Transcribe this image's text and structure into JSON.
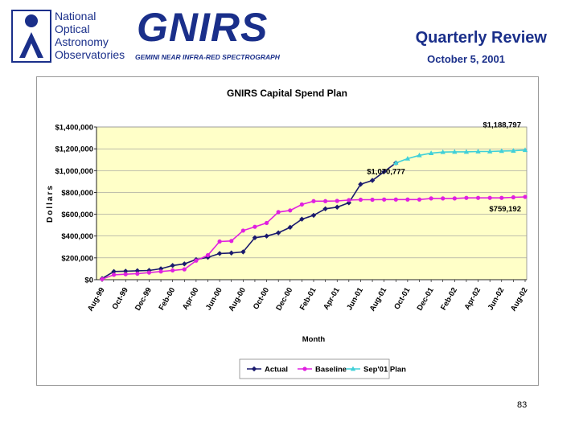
{
  "header": {
    "org_lines": [
      "National",
      "Optical",
      "Astronomy",
      "Observatories"
    ],
    "project": "GNIRS",
    "project_subtitle": "GEMINI NEAR INFRA-RED SPECTROGRAPH",
    "title": "Quarterly Review",
    "date": "October 5, 2001"
  },
  "page_number": "83",
  "colors": {
    "header_blue": "#1a2f8a",
    "plot_bg": "#ffffc8",
    "actual": "#1a1a6e",
    "baseline": "#e020e0",
    "plan": "#40d0d8"
  },
  "chart_data": {
    "type": "line",
    "title": "GNIRS Capital Spend Plan",
    "xlabel": "Month",
    "ylabel": "Dollars",
    "ylim": [
      0,
      1400000
    ],
    "yticks": [
      0,
      200000,
      400000,
      600000,
      800000,
      1000000,
      1200000,
      1400000
    ],
    "ytick_labels": [
      "$0",
      "$200,000",
      "$400,000",
      "$600,000",
      "$800,000",
      "$1,000,000",
      "$1,200,000",
      "$1,400,000"
    ],
    "grid": true,
    "legend_position": "bottom",
    "categories": [
      "Aug-99",
      "Sep-99",
      "Oct-99",
      "Nov-99",
      "Dec-99",
      "Jan-00",
      "Feb-00",
      "Mar-00",
      "Apr-00",
      "May-00",
      "Jun-00",
      "Jul-00",
      "Aug-00",
      "Sep-00",
      "Oct-00",
      "Nov-00",
      "Dec-00",
      "Jan-01",
      "Feb-01",
      "Mar-01",
      "Apr-01",
      "May-01",
      "Jun-01",
      "Jul-01",
      "Aug-01",
      "Sep-01",
      "Oct-01",
      "Nov-01",
      "Dec-01",
      "Jan-02",
      "Feb-02",
      "Mar-02",
      "Apr-02",
      "May-02",
      "Jun-02",
      "Jul-02",
      "Aug-02"
    ],
    "tick_labels": [
      "Aug-99",
      "Oct-99",
      "Dec-99",
      "Feb-00",
      "Apr-00",
      "Jun-00",
      "Aug-00",
      "Oct-00",
      "Dec-00",
      "Feb-01",
      "Apr-01",
      "Jun-01",
      "Aug-01",
      "Oct-01",
      "Dec-01",
      "Feb-02",
      "Apr-02",
      "Jun-02",
      "Aug-02"
    ],
    "series": [
      {
        "name": "Actual",
        "color": "#1a1a6e",
        "marker": "diamond",
        "values": [
          10000,
          75000,
          78000,
          82000,
          85000,
          100000,
          130000,
          145000,
          185000,
          205000,
          240000,
          245000,
          255000,
          385000,
          400000,
          430000,
          480000,
          555000,
          590000,
          650000,
          665000,
          705000,
          875000,
          910000,
          990000,
          1070777,
          null,
          null,
          null,
          null,
          null,
          null,
          null,
          null,
          null,
          null,
          null
        ]
      },
      {
        "name": "Baseline",
        "color": "#e020e0",
        "marker": "circle",
        "values": [
          5000,
          45000,
          50000,
          55000,
          65000,
          75000,
          85000,
          95000,
          175000,
          225000,
          350000,
          355000,
          450000,
          485000,
          520000,
          620000,
          635000,
          690000,
          720000,
          720000,
          722000,
          730000,
          733000,
          733000,
          735000,
          735000,
          735000,
          735000,
          745000,
          745000,
          745000,
          750000,
          750000,
          750000,
          750000,
          755000,
          759192
        ]
      },
      {
        "name": "Sep'01 Plan",
        "color": "#40d0d8",
        "marker": "triangle",
        "values": [
          null,
          null,
          null,
          null,
          null,
          null,
          null,
          null,
          null,
          null,
          null,
          null,
          null,
          null,
          null,
          null,
          null,
          null,
          null,
          null,
          null,
          null,
          null,
          null,
          null,
          1070777,
          1110000,
          1140000,
          1160000,
          1170000,
          1172000,
          1172000,
          1175000,
          1175000,
          1180000,
          1182000,
          1188797
        ]
      }
    ],
    "annotations": [
      {
        "text": "$1,188,797",
        "x": "Aug-02",
        "y": 1188797
      },
      {
        "text": "$1,070,777",
        "x": "Sep-01",
        "y": 1070777
      },
      {
        "text": "$759,192",
        "x": "Aug-02",
        "y": 759192
      }
    ]
  }
}
